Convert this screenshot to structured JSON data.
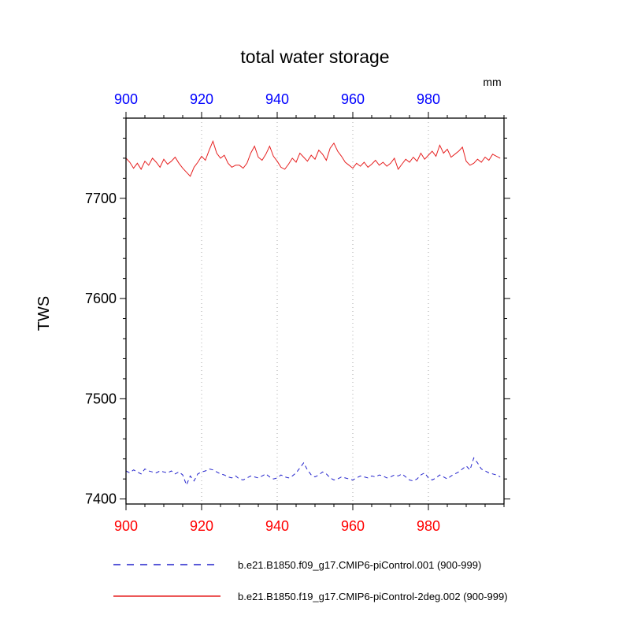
{
  "title": "total water storage",
  "units_label": "mm",
  "y_axis_label": "TWS",
  "colors": {
    "top_axis": "#0000ff",
    "bottom_axis": "#ff0000",
    "series_blue": "#2222cc",
    "series_red": "#e62020",
    "grid": "#aaaaaa",
    "frame": "#000000"
  },
  "chart_data": {
    "type": "line",
    "title": "total water storage",
    "xlabel": "",
    "ylabel": "TWS",
    "units": "mm",
    "xlim": [
      900,
      1000
    ],
    "ylim": [
      7395,
      7780
    ],
    "xticks": [
      900,
      920,
      940,
      960,
      980
    ],
    "yticks": [
      7400,
      7500,
      7600,
      7700
    ],
    "xtick_minor_step": 5,
    "ytick_minor_step": 20,
    "grid_x": [
      920,
      940,
      960,
      980
    ],
    "grid_style": "dotted-vertical",
    "legend_position": "below",
    "x_start": 900,
    "series": [
      {
        "name": "b.e21.B1850.f09_g17.CMIP6-piControl.001 (900-999)",
        "color": "#2222cc",
        "style": "dashed",
        "values": [
          7428,
          7426,
          7429,
          7427,
          7425,
          7430,
          7428,
          7427,
          7426,
          7428,
          7427,
          7426,
          7428,
          7425,
          7427,
          7424,
          7414,
          7423,
          7418,
          7425,
          7427,
          7428,
          7430,
          7429,
          7427,
          7425,
          7424,
          7422,
          7421,
          7423,
          7420,
          7419,
          7421,
          7423,
          7422,
          7421,
          7423,
          7425,
          7422,
          7420,
          7421,
          7424,
          7422,
          7421,
          7423,
          7426,
          7431,
          7436,
          7429,
          7424,
          7422,
          7424,
          7427,
          7425,
          7421,
          7419,
          7420,
          7422,
          7421,
          7420,
          7419,
          7421,
          7423,
          7422,
          7421,
          7423,
          7422,
          7424,
          7423,
          7421,
          7422,
          7424,
          7423,
          7425,
          7422,
          7419,
          7418,
          7420,
          7424,
          7426,
          7421,
          7419,
          7421,
          7424,
          7422,
          7420,
          7423,
          7425,
          7427,
          7430,
          7433,
          7429,
          7441,
          7436,
          7430,
          7428,
          7426,
          7425,
          7424,
          7422
        ]
      },
      {
        "name": "b.e21.B1850.f19_g17.CMIP6-piControl-2deg.002 (900-999)",
        "color": "#e62020",
        "style": "solid",
        "values": [
          7740,
          7736,
          7730,
          7735,
          7729,
          7737,
          7733,
          7740,
          7736,
          7731,
          7739,
          7734,
          7737,
          7741,
          7735,
          7730,
          7726,
          7722,
          7731,
          7736,
          7742,
          7738,
          7748,
          7757,
          7745,
          7740,
          7743,
          7735,
          7731,
          7733,
          7733,
          7730,
          7735,
          7745,
          7752,
          7741,
          7738,
          7744,
          7752,
          7742,
          7737,
          7731,
          7729,
          7734,
          7740,
          7736,
          7745,
          7741,
          7737,
          7743,
          7739,
          7748,
          7744,
          7738,
          7750,
          7755,
          7747,
          7742,
          7736,
          7733,
          7730,
          7735,
          7732,
          7736,
          7731,
          7734,
          7738,
          7733,
          7736,
          7732,
          7735,
          7740,
          7729,
          7734,
          7739,
          7736,
          7741,
          7737,
          7745,
          7739,
          7743,
          7747,
          7742,
          7753,
          7745,
          7749,
          7741,
          7744,
          7747,
          7751,
          7737,
          7733,
          7735,
          7739,
          7736,
          7741,
          7738,
          7744,
          7742,
          7740
        ]
      }
    ]
  },
  "legend": {
    "items": [
      {
        "label": "b.e21.B1850.f09_g17.CMIP6-piControl.001 (900-999)"
      },
      {
        "label": "b.e21.B1850.f19_g17.CMIP6-piControl-2deg.002 (900-999)"
      }
    ]
  }
}
